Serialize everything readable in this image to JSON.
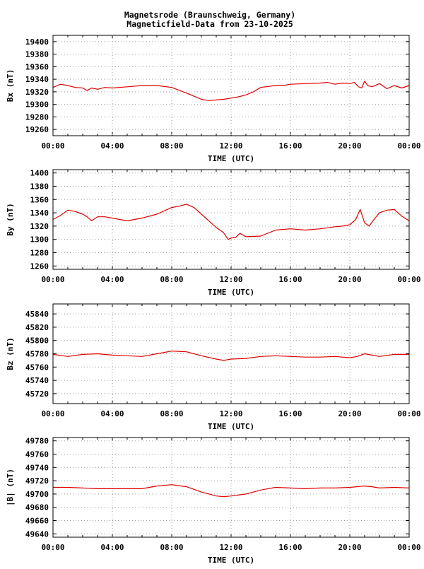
{
  "title_line1": "Magnetsrode (Braunschweig, Germany)",
  "title_line2": "Magneticfield-Data from 23-10-2025",
  "line_color": "#dd0000",
  "grid": true,
  "chart_data": [
    {
      "type": "line",
      "ylabel": "Bx (nT)",
      "xlabel": "TIME (UTC)",
      "xlim": [
        0,
        24
      ],
      "xticks": [
        "00:00",
        "04:00",
        "08:00",
        "12:00",
        "16:00",
        "20:00",
        "00:00"
      ],
      "ylim": [
        19250,
        19410
      ],
      "yticks": [
        19260,
        19280,
        19300,
        19320,
        19340,
        19360,
        19380,
        19400
      ],
      "x": [
        0,
        0.5,
        1,
        1.5,
        2,
        2.3,
        2.6,
        3,
        3.5,
        4,
        5,
        6,
        7,
        8,
        9,
        9.5,
        10,
        10.5,
        11,
        11.5,
        12,
        12.5,
        13,
        13.5,
        14,
        15,
        15.5,
        16,
        17,
        18,
        18.5,
        19,
        19.5,
        20,
        20.3,
        20.6,
        20.8,
        21,
        21.2,
        21.5,
        22,
        22.5,
        23,
        23.5,
        24
      ],
      "y": [
        19327,
        19332,
        19330,
        19327,
        19326,
        19322,
        19326,
        19324,
        19327,
        19326,
        19328,
        19330,
        19330,
        19327,
        19318,
        19313,
        19308,
        19306,
        19307,
        19308,
        19310,
        19312,
        19315,
        19320,
        19327,
        19330,
        19330,
        19332,
        19333,
        19334,
        19335,
        19332,
        19334,
        19333,
        19335,
        19328,
        19326,
        19337,
        19330,
        19328,
        19333,
        19325,
        19330,
        19326,
        19330
      ]
    },
    {
      "type": "line",
      "ylabel": "By (nT)",
      "xlabel": "TIME (UTC)",
      "xlim": [
        0,
        24
      ],
      "xticks": [
        "00:00",
        "04:00",
        "08:00",
        "12:00",
        "16:00",
        "20:00",
        "00:00"
      ],
      "ylim": [
        1255,
        1405
      ],
      "yticks": [
        1260,
        1280,
        1300,
        1320,
        1340,
        1360,
        1380,
        1400
      ],
      "x": [
        0,
        0.5,
        1,
        1.5,
        2,
        2.3,
        2.6,
        3,
        3.5,
        4,
        5,
        6,
        7,
        7.5,
        8,
        8.5,
        9,
        9.5,
        10,
        10.5,
        11,
        11.5,
        11.8,
        12,
        12.3,
        12.6,
        13,
        14,
        15,
        16,
        17,
        18,
        19,
        19.5,
        20,
        20.4,
        20.7,
        21,
        21.3,
        21.7,
        22,
        22.5,
        23,
        23.5,
        24
      ],
      "y": [
        1330,
        1336,
        1344,
        1342,
        1338,
        1334,
        1328,
        1334,
        1334,
        1332,
        1328,
        1332,
        1338,
        1343,
        1348,
        1350,
        1353,
        1348,
        1338,
        1328,
        1318,
        1310,
        1300,
        1302,
        1303,
        1309,
        1304,
        1305,
        1314,
        1316,
        1314,
        1316,
        1319,
        1320,
        1322,
        1330,
        1345,
        1325,
        1320,
        1332,
        1340,
        1344,
        1345,
        1335,
        1328
      ]
    },
    {
      "type": "line",
      "ylabel": "Bz (nT)",
      "xlabel": "TIME (UTC)",
      "xlim": [
        0,
        24
      ],
      "xticks": [
        "00:00",
        "04:00",
        "08:00",
        "12:00",
        "16:00",
        "20:00",
        "00:00"
      ],
      "ylim": [
        45705,
        45855
      ],
      "yticks": [
        45720,
        45740,
        45760,
        45780,
        45800,
        45820,
        45840
      ],
      "x": [
        0,
        1,
        2,
        3,
        4,
        5,
        6,
        7,
        8,
        9,
        10,
        11,
        11.5,
        12,
        13,
        14,
        15,
        16,
        17,
        18,
        19,
        20,
        20.5,
        21,
        21.5,
        22,
        23,
        24
      ],
      "y": [
        45779,
        45776,
        45779,
        45780,
        45778,
        45777,
        45776,
        45780,
        45784,
        45783,
        45777,
        45772,
        45770,
        45772,
        45773,
        45776,
        45777,
        45776,
        45775,
        45775,
        45776,
        45774,
        45776,
        45780,
        45778,
        45776,
        45779,
        45779
      ]
    },
    {
      "type": "line",
      "ylabel": "|B| (nT)",
      "xlabel": "TIME (UTC)",
      "xlim": [
        0,
        24
      ],
      "xticks": [
        "00:00",
        "04:00",
        "08:00",
        "12:00",
        "16:00",
        "20:00",
        "00:00"
      ],
      "ylim": [
        49635,
        49785
      ],
      "yticks": [
        49640,
        49660,
        49680,
        49700,
        49720,
        49740,
        49760,
        49780
      ],
      "x": [
        0,
        1,
        2,
        3,
        4,
        5,
        6,
        7,
        8,
        9,
        10,
        11,
        11.5,
        12,
        13,
        14,
        15,
        16,
        17,
        18,
        19,
        20,
        21,
        21.5,
        22,
        23,
        24
      ],
      "y": [
        49710,
        49710,
        49709,
        49708,
        49708,
        49708,
        49708,
        49712,
        49714,
        49711,
        49703,
        49697,
        49696,
        49697,
        49700,
        49706,
        49710,
        49709,
        49708,
        49709,
        49709,
        49710,
        49712,
        49711,
        49709,
        49710,
        49709
      ]
    }
  ]
}
